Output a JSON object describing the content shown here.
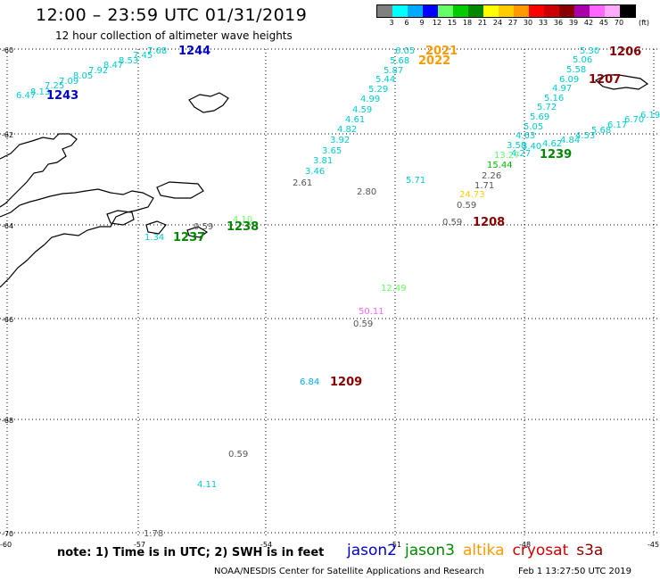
{
  "title": "12:00 – 23:59 UTC 01/31/2019",
  "subtitle": "12 hour collection of altimeter wave heights",
  "legend": {
    "unit": "(ft)",
    "colors": [
      "#808080",
      "#00ffff",
      "#00aaff",
      "#0000ff",
      "#66ff66",
      "#00cc00",
      "#008800",
      "#ffff00",
      "#ffcc00",
      "#ff9900",
      "#ff0000",
      "#cc0000",
      "#880000",
      "#aa00aa",
      "#ff66ff",
      "#ffaaff",
      "#000000"
    ],
    "labels": [
      "3",
      "6",
      "9",
      "12",
      "15",
      "18",
      "21",
      "24",
      "27",
      "30",
      "33",
      "36",
      "39",
      "42",
      "45",
      "70"
    ]
  },
  "map": {
    "lat_labels": [
      "-60",
      "-62",
      "-64",
      "-66",
      "-68",
      "-70"
    ],
    "lon_labels": [
      "-60",
      "-57",
      "-54",
      "-51",
      "-48",
      "-45"
    ],
    "track_labels": [
      {
        "text": "1244",
        "color": "#0000cc"
      },
      {
        "text": "1243",
        "color": "#0000cc"
      },
      {
        "text": "2021",
        "color": "#ff9900"
      },
      {
        "text": "2022",
        "color": "#ff9900"
      },
      {
        "text": "1206",
        "color": "#880000"
      },
      {
        "text": "1207",
        "color": "#880000"
      },
      {
        "text": "1239",
        "color": "#008800"
      },
      {
        "text": "1238",
        "color": "#008800"
      },
      {
        "text": "1237",
        "color": "#008800"
      },
      {
        "text": "1208",
        "color": "#880000"
      },
      {
        "text": "1209",
        "color": "#880000"
      }
    ],
    "wave_heights": [
      {
        "text": "6.47",
        "color": "#00cccc"
      },
      {
        "text": "8.13",
        "color": "#00cccc"
      },
      {
        "text": "7.25",
        "color": "#00cccc"
      },
      {
        "text": "7.09",
        "color": "#00cccc"
      },
      {
        "text": "8.05",
        "color": "#00cccc"
      },
      {
        "text": "7.92",
        "color": "#00cccc"
      },
      {
        "text": "8.47",
        "color": "#00cccc"
      },
      {
        "text": "8.53",
        "color": "#00cccc"
      },
      {
        "text": "7.45",
        "color": "#00cccc"
      },
      {
        "text": "7.68",
        "color": "#00cccc"
      },
      {
        "text": "6.05",
        "color": "#00cccc"
      },
      {
        "text": "5.68",
        "color": "#00cccc"
      },
      {
        "text": "5.87",
        "color": "#00cccc"
      },
      {
        "text": "5.44",
        "color": "#00cccc"
      },
      {
        "text": "5.29",
        "color": "#00cccc"
      },
      {
        "text": "4.99",
        "color": "#00cccc"
      },
      {
        "text": "4.59",
        "color": "#00cccc"
      },
      {
        "text": "4.61",
        "color": "#00cccc"
      },
      {
        "text": "4.82",
        "color": "#00cccc"
      },
      {
        "text": "3.92",
        "color": "#00cccc"
      },
      {
        "text": "3.65",
        "color": "#00cccc"
      },
      {
        "text": "3.81",
        "color": "#00cccc"
      },
      {
        "text": "3.46",
        "color": "#00cccc"
      },
      {
        "text": "2.61",
        "color": "#555555"
      },
      {
        "text": "2.80",
        "color": "#555555"
      },
      {
        "text": "5.71",
        "color": "#00cccc"
      },
      {
        "text": "5.30",
        "color": "#00cccc"
      },
      {
        "text": "5.06",
        "color": "#00cccc"
      },
      {
        "text": "5.58",
        "color": "#00cccc"
      },
      {
        "text": "6.09",
        "color": "#00cccc"
      },
      {
        "text": "4.97",
        "color": "#00cccc"
      },
      {
        "text": "5.16",
        "color": "#00cccc"
      },
      {
        "text": "5.72",
        "color": "#00cccc"
      },
      {
        "text": "5.69",
        "color": "#00cccc"
      },
      {
        "text": "5.05",
        "color": "#00cccc"
      },
      {
        "text": "4.63",
        "color": "#00cccc"
      },
      {
        "text": "3.58",
        "color": "#00cccc"
      },
      {
        "text": "3.40",
        "color": "#00cccc"
      },
      {
        "text": "4.62",
        "color": "#00cccc"
      },
      {
        "text": "4.84",
        "color": "#00cccc"
      },
      {
        "text": "4.53",
        "color": "#00cccc"
      },
      {
        "text": "5.68",
        "color": "#00cccc"
      },
      {
        "text": "6.17",
        "color": "#00cccc"
      },
      {
        "text": "6.70",
        "color": "#00cccc"
      },
      {
        "text": "6.19",
        "color": "#00cccc"
      },
      {
        "text": "13.27",
        "color": "#66ff66"
      },
      {
        "text": "4.27",
        "color": "#00cccc"
      },
      {
        "text": "15.44",
        "color": "#00bb00"
      },
      {
        "text": "2.26",
        "color": "#555555"
      },
      {
        "text": "1.71",
        "color": "#555555"
      },
      {
        "text": "24.73",
        "color": "#ffcc00"
      },
      {
        "text": "0.59",
        "color": "#555555"
      },
      {
        "text": "0.59",
        "color": "#555555"
      },
      {
        "text": "4.10",
        "color": "#66ff66"
      },
      {
        "text": "0.59",
        "color": "#555555"
      },
      {
        "text": "1.34",
        "color": "#00cccc"
      },
      {
        "text": "12.49",
        "color": "#66ff66"
      },
      {
        "text": "50.11",
        "color": "#ff66ff"
      },
      {
        "text": "0.59",
        "color": "#555555"
      },
      {
        "text": "6.84",
        "color": "#00aaff"
      },
      {
        "text": "0.59",
        "color": "#555555"
      },
      {
        "text": "4.11",
        "color": "#00cccc"
      },
      {
        "text": "1.78",
        "color": "#555555"
      }
    ]
  },
  "footer": {
    "note": "note: 1) Time is in UTC; 2) SWH is in feet",
    "satellites": [
      {
        "name": "jason2",
        "color": "#0000cc"
      },
      {
        "name": "jason3",
        "color": "#008800"
      },
      {
        "name": "altika",
        "color": "#ff9900"
      },
      {
        "name": "cryosat",
        "color": "#cc0000"
      },
      {
        "name": "s3a",
        "color": "#880000"
      }
    ],
    "credit": "NOAA/NESDIS Center for Satellite Applications and Research",
    "timestamp": "Feb  1 13:27:50 UTC 2019"
  }
}
